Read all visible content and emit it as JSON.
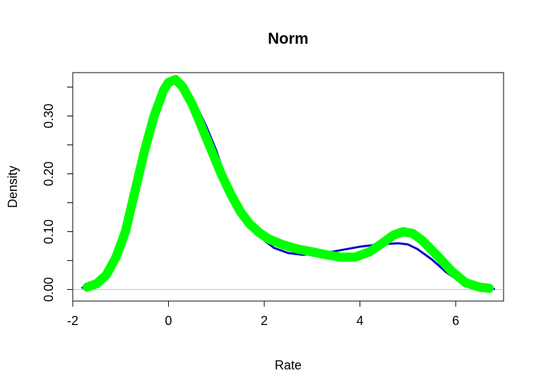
{
  "chart_data": {
    "type": "line",
    "title": "Norm",
    "xlabel": "Rate",
    "ylabel": "Density",
    "xlim": [
      -2.0,
      7.0
    ],
    "ylim": [
      -0.02,
      0.375
    ],
    "x_ticks": [
      -2,
      0,
      2,
      4,
      6
    ],
    "x_tick_labels": [
      "-2",
      "0",
      "2",
      "4",
      "6"
    ],
    "y_ticks": [
      0.0,
      0.05,
      0.1,
      0.15,
      0.2,
      0.25,
      0.3,
      0.35
    ],
    "y_tick_labels": [
      "0.00",
      "",
      "0.10",
      "",
      "0.20",
      "",
      "0.30",
      ""
    ],
    "baseline_y": 0,
    "grid": false,
    "series": [
      {
        "color": "#0000cd",
        "line_width": 3,
        "x": [
          -1.8,
          -1.5,
          -1.2,
          -1.0,
          -0.8,
          -0.6,
          -0.4,
          -0.2,
          0.0,
          0.1,
          0.2,
          0.4,
          0.6,
          0.8,
          1.0,
          1.2,
          1.4,
          1.6,
          1.8,
          2.0,
          2.2,
          2.5,
          2.8,
          3.2,
          3.6,
          4.0,
          4.4,
          4.8,
          5.0,
          5.2,
          5.5,
          5.8,
          6.1,
          6.4,
          6.8
        ],
        "y": [
          0.003,
          0.008,
          0.03,
          0.06,
          0.11,
          0.18,
          0.25,
          0.31,
          0.355,
          0.36,
          0.358,
          0.34,
          0.315,
          0.28,
          0.24,
          0.19,
          0.15,
          0.12,
          0.1,
          0.085,
          0.072,
          0.063,
          0.06,
          0.062,
          0.068,
          0.074,
          0.078,
          0.08,
          0.078,
          0.07,
          0.052,
          0.03,
          0.013,
          0.004,
          0.001
        ]
      },
      {
        "color": "#00ff00",
        "line_width": 13,
        "x": [
          -1.7,
          -1.5,
          -1.3,
          -1.1,
          -0.9,
          -0.7,
          -0.5,
          -0.3,
          -0.1,
          0.0,
          0.15,
          0.3,
          0.5,
          0.7,
          0.9,
          1.1,
          1.3,
          1.5,
          1.7,
          1.9,
          2.1,
          2.4,
          2.7,
          3.0,
          3.3,
          3.6,
          3.9,
          4.2,
          4.5,
          4.7,
          4.9,
          5.1,
          5.3,
          5.6,
          5.9,
          6.2,
          6.5,
          6.7
        ],
        "y": [
          0.004,
          0.01,
          0.025,
          0.055,
          0.1,
          0.17,
          0.24,
          0.3,
          0.345,
          0.358,
          0.363,
          0.35,
          0.32,
          0.28,
          0.24,
          0.2,
          0.165,
          0.135,
          0.113,
          0.098,
          0.087,
          0.077,
          0.07,
          0.065,
          0.06,
          0.056,
          0.056,
          0.065,
          0.082,
          0.094,
          0.1,
          0.097,
          0.085,
          0.06,
          0.033,
          0.012,
          0.004,
          0.002
        ]
      }
    ]
  }
}
